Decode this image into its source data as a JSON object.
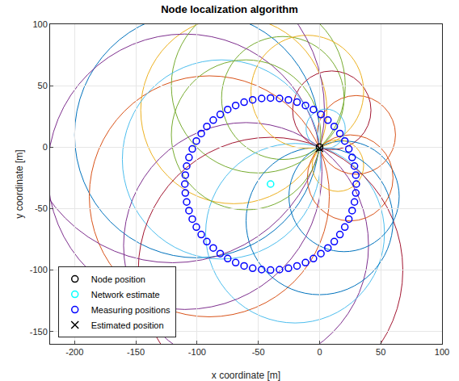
{
  "chart_data": {
    "type": "scatter",
    "title": "Node localization algorithm",
    "x_label": "x coordinate [m]",
    "y_label": "y coordinate [m]",
    "xlim": [
      -220,
      100
    ],
    "xticks": [
      -200,
      -150,
      -100,
      -50,
      0,
      50,
      100
    ],
    "ylim": [
      -160,
      100
    ],
    "yticks": [
      -150,
      -100,
      -50,
      0,
      50,
      100
    ],
    "grid": true,
    "legend": "bottom left",
    "circles": {
      "x": [
        -100,
        -90,
        -70,
        -60,
        -30,
        -20,
        10,
        20,
        30,
        15,
        -110,
        -50,
        -80,
        -40,
        0,
        25,
        -10,
        -120,
        -60,
        5
      ],
      "y": [
        10,
        -40,
        30,
        -80,
        40,
        -70,
        30,
        -40,
        10,
        -15,
        -20,
        50,
        -10,
        -100,
        -60,
        -25,
        45,
        30,
        10,
        15
      ],
      "r": [
        100,
        98,
        76,
        100,
        50,
        73,
        32,
        45,
        32,
        21,
        112,
        71,
        81,
        108,
        60,
        35,
        46,
        124,
        61,
        16
      ],
      "colors": [
        "#0072BD",
        "#D95319",
        "#EDB120",
        "#7E2F8E",
        "#77AC30",
        "#4DBEEE",
        "#A2142F",
        "#0072BD",
        "#D95319",
        "#EDB120",
        "#7E2F8E",
        "#77AC30",
        "#4DBEEE",
        "#A2142F",
        "#0072BD",
        "#D95319",
        "#EDB120",
        "#7E2F8E",
        "#77AC30",
        "#4DBEEE"
      ]
    },
    "series": [
      {
        "name": "Node position",
        "color": "#000000",
        "marker": "circle-open",
        "x": [
          0
        ],
        "y": [
          0
        ]
      },
      {
        "name": "Network estimate",
        "color": "#00ffff",
        "marker": "circle-open",
        "x": [
          -40
        ],
        "y": [
          -30
        ]
      },
      {
        "name": "Measuring positions",
        "color": "#0000ff",
        "marker": "circle-open",
        "x": [
          30,
          29.6,
          28.5,
          26.6,
          23.9,
          20.6,
          16.6,
          12.0,
          6.8,
          1.1,
          -5,
          -11.5,
          -18.4,
          -25.4,
          -32.7,
          -40,
          -47.3,
          -54.6,
          -61.6,
          -68.5,
          -75,
          -81.1,
          -86.8,
          -92.0,
          -96.6,
          -100.6,
          -103.9,
          -106.6,
          -108.5,
          -109.6,
          -110,
          -109.6,
          -108.5,
          -106.6,
          -103.9,
          -100.6,
          -96.6,
          -92.0,
          -86.8,
          -81.1,
          -75,
          -68.5,
          -61.6,
          -54.6,
          -47.3,
          -40,
          -32.7,
          -25.4,
          -18.4,
          -11.5,
          -5,
          1.1,
          6.8,
          12.0,
          16.6,
          20.6,
          23.9,
          26.6,
          28.5,
          29.6
        ],
        "y": [
          -30,
          -22.7,
          -15.4,
          -8.4,
          -1.5,
          5,
          11.1,
          16.8,
          22.0,
          26.6,
          30.6,
          33.9,
          36.6,
          38.5,
          39.6,
          40,
          39.6,
          38.5,
          36.6,
          33.9,
          30.6,
          26.6,
          22.0,
          16.8,
          11.1,
          5,
          -1.5,
          -8.4,
          -15.4,
          -22.7,
          -30,
          -37.3,
          -44.6,
          -51.6,
          -58.5,
          -65,
          -71.1,
          -76.8,
          -82.0,
          -86.6,
          -90.6,
          -93.9,
          -96.6,
          -98.5,
          -99.6,
          -100,
          -99.6,
          -98.5,
          -96.6,
          -93.9,
          -90.6,
          -86.6,
          -82.0,
          -76.8,
          -71.1,
          -65,
          -58.5,
          -51.6,
          -44.6,
          -37.3
        ]
      },
      {
        "name": "Estimated position",
        "color": "#000000",
        "marker": "x",
        "x": [
          0
        ],
        "y": [
          -1
        ]
      }
    ]
  }
}
